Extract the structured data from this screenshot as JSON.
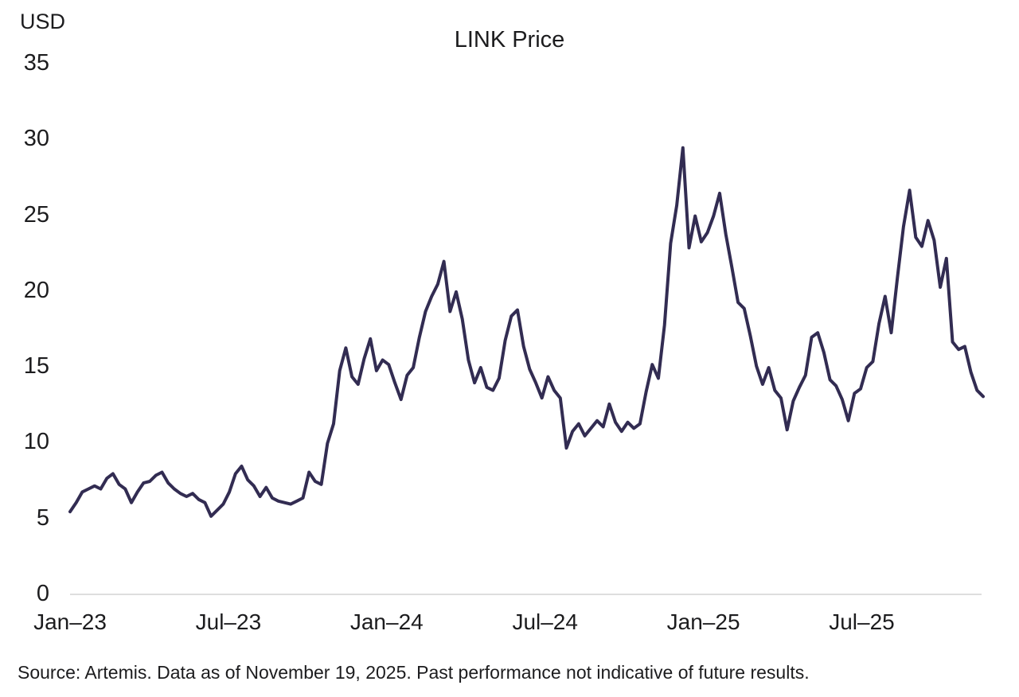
{
  "chart": {
    "unit_label": "USD",
    "title": "LINK Price"
  },
  "footer": {
    "source": "Source: Artemis. Data as of November 19, 2025. Past performance not indicative of future results."
  },
  "chart_data": {
    "type": "line",
    "title": "LINK Price",
    "xlabel": "",
    "ylabel": "USD",
    "ylim": [
      0,
      35
    ],
    "y_ticks": [
      0,
      5,
      10,
      15,
      20,
      25,
      30,
      35
    ],
    "x_ticks": [
      "Jan–23",
      "Jul–23",
      "Jan–24",
      "Jul–24",
      "Jan–25",
      "Jul–25"
    ],
    "x_tick_month_offsets": [
      0,
      6,
      12,
      18,
      24,
      30
    ],
    "x_months_total": 34.6,
    "grid": false,
    "legend": false,
    "line_color": "#322C52",
    "baseline_color": "#d4d4d4",
    "series": [
      {
        "name": "LINK price (USD)",
        "sampling": "weekly",
        "start": "2023-01-01",
        "end": "2025-11-19",
        "values": [
          5.4,
          6.0,
          6.7,
          6.9,
          7.1,
          6.9,
          7.6,
          7.9,
          7.2,
          6.9,
          6.0,
          6.7,
          7.3,
          7.4,
          7.8,
          8.0,
          7.3,
          6.9,
          6.6,
          6.4,
          6.6,
          6.2,
          6.0,
          5.1,
          5.5,
          5.9,
          6.7,
          7.9,
          8.4,
          7.5,
          7.1,
          6.4,
          7.0,
          6.3,
          6.1,
          6.0,
          5.9,
          6.1,
          6.3,
          8.0,
          7.4,
          7.2,
          9.9,
          11.2,
          14.7,
          16.2,
          14.3,
          13.8,
          15.5,
          16.8,
          14.7,
          15.4,
          15.1,
          13.9,
          12.8,
          14.4,
          14.9,
          16.9,
          18.6,
          19.6,
          20.4,
          21.9,
          18.6,
          19.9,
          18.1,
          15.4,
          13.9,
          14.9,
          13.6,
          13.4,
          14.2,
          16.7,
          18.3,
          18.7,
          16.3,
          14.8,
          13.9,
          12.9,
          14.3,
          13.4,
          12.9,
          9.6,
          10.7,
          11.2,
          10.4,
          10.9,
          11.4,
          11.0,
          12.5,
          11.3,
          10.7,
          11.3,
          10.9,
          11.2,
          13.3,
          15.1,
          14.2,
          17.7,
          23.1,
          25.6,
          29.4,
          22.8,
          24.9,
          23.2,
          23.8,
          24.9,
          26.4,
          23.7,
          21.5,
          19.2,
          18.8,
          17.0,
          15.0,
          13.8,
          14.9,
          13.4,
          12.9,
          10.8,
          12.7,
          13.6,
          14.4,
          16.9,
          17.2,
          15.9,
          14.1,
          13.7,
          12.8,
          11.4,
          13.2,
          13.5,
          14.9,
          15.3,
          17.8,
          19.6,
          17.2,
          20.8,
          24.2,
          26.6,
          23.5,
          22.9,
          24.6,
          23.3,
          20.2,
          22.1,
          16.6,
          16.1,
          16.3,
          14.6,
          13.4,
          13.0
        ]
      }
    ]
  }
}
